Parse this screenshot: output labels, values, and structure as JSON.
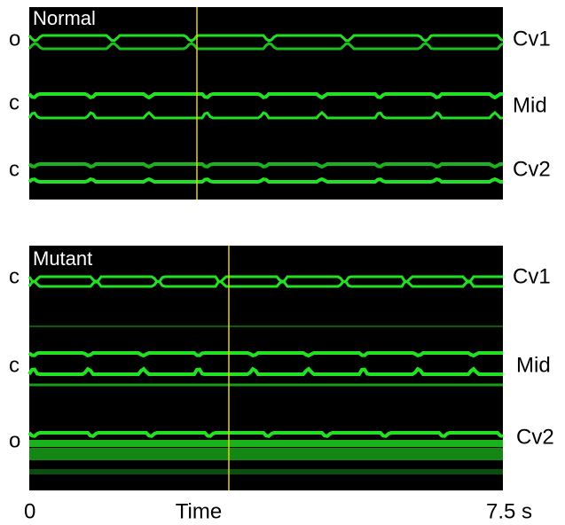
{
  "panels": [
    {
      "title": "Normal",
      "left_labels": [
        "o",
        "c",
        "c"
      ],
      "right_labels": [
        "Cv1",
        "Mid",
        "Cv2"
      ]
    },
    {
      "title": "Mutant",
      "left_labels": [
        "c",
        "c",
        "o"
      ],
      "right_labels": [
        "Cv1",
        "Mid",
        "Cv2"
      ]
    }
  ],
  "axis": {
    "start": "0",
    "label": "Time",
    "end": "7.5 s"
  }
}
